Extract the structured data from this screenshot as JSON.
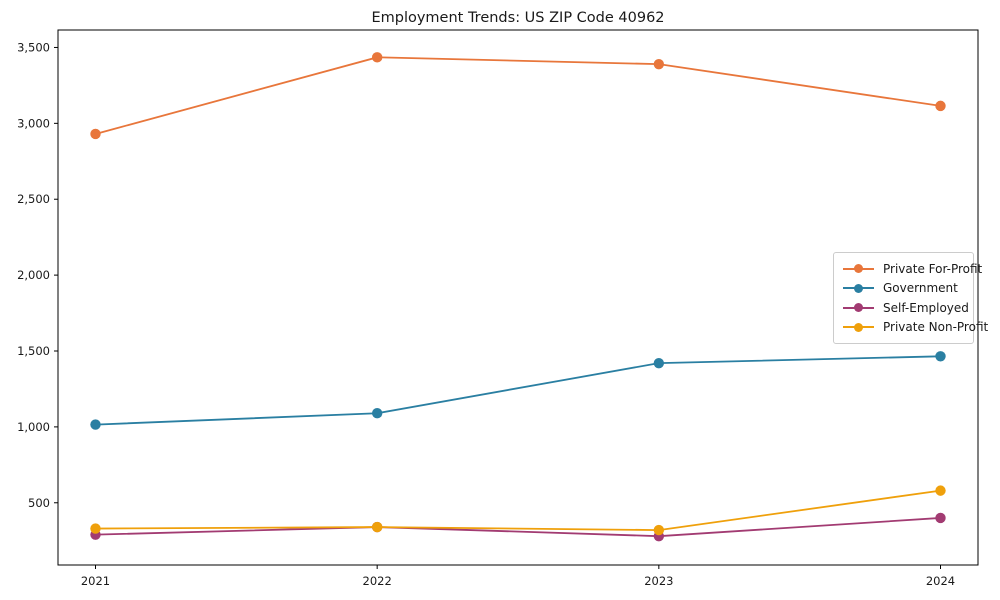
{
  "chart_data": {
    "type": "line",
    "title": "Employment Trends: US ZIP Code 40962",
    "xlabel": "",
    "ylabel": "",
    "x": [
      "2021",
      "2022",
      "2023",
      "2024"
    ],
    "series": [
      {
        "name": "Private For-Profit",
        "color": "#E8763B",
        "values": [
          2930,
          3435,
          3390,
          3115
        ]
      },
      {
        "name": "Government",
        "color": "#2A7FA2",
        "values": [
          1015,
          1090,
          1420,
          1465
        ]
      },
      {
        "name": "Self-Employed",
        "color": "#A23B72",
        "values": [
          290,
          340,
          280,
          400
        ]
      },
      {
        "name": "Private Non-Profit",
        "color": "#EFA00B",
        "values": [
          330,
          340,
          320,
          580
        ]
      }
    ],
    "yticks": [
      500,
      1000,
      1500,
      2000,
      2500,
      3000,
      3500
    ],
    "ytick_labels": [
      "500",
      "1,000",
      "1,500",
      "2,000",
      "2,500",
      "3,000",
      "3,500"
    ],
    "ylim": [
      90,
      3615
    ],
    "grid": false,
    "legend_position": "center right",
    "marker": "circle",
    "axis_color": "#000000"
  }
}
